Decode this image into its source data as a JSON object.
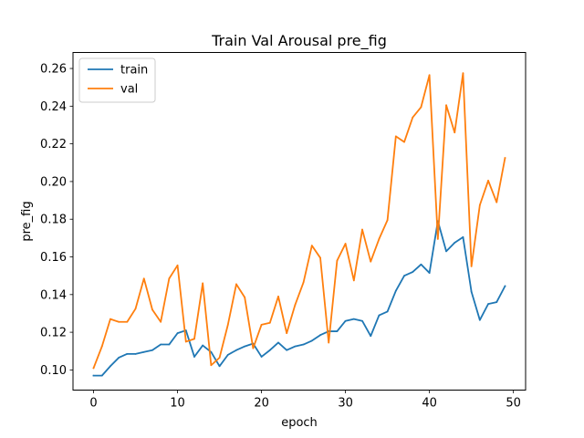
{
  "chart_data": {
    "type": "line",
    "title": "Train Val Arousal pre_fig",
    "xlabel": "epoch",
    "ylabel": "pre_fig",
    "xlim": [
      -2.45,
      51.45
    ],
    "ylim": [
      0.0893,
      0.2685
    ],
    "xticks": [
      0,
      10,
      20,
      30,
      40,
      50
    ],
    "yticks": [
      0.1,
      0.12,
      0.14,
      0.16,
      0.18,
      0.2,
      0.22,
      0.24,
      0.26
    ],
    "grid": false,
    "legend_position": "top-left",
    "x": [
      0,
      1,
      2,
      3,
      4,
      5,
      6,
      7,
      8,
      9,
      10,
      11,
      12,
      13,
      14,
      15,
      16,
      17,
      18,
      19,
      20,
      21,
      22,
      23,
      24,
      25,
      26,
      27,
      28,
      29,
      30,
      31,
      32,
      33,
      34,
      35,
      36,
      37,
      38,
      39,
      40,
      41,
      42,
      43,
      44,
      45,
      46,
      47,
      48,
      49
    ],
    "series": [
      {
        "name": "train",
        "color": "#1f77b4",
        "values": [
          0.097,
          0.097,
          0.102,
          0.1065,
          0.1085,
          0.1085,
          0.1095,
          0.1105,
          0.1135,
          0.1135,
          0.1195,
          0.121,
          0.107,
          0.113,
          0.1095,
          0.102,
          0.108,
          0.1105,
          0.1125,
          0.114,
          0.107,
          0.1105,
          0.1145,
          0.1105,
          0.1125,
          0.1135,
          0.1155,
          0.1185,
          0.1205,
          0.1205,
          0.126,
          0.127,
          0.126,
          0.118,
          0.129,
          0.131,
          0.142,
          0.15,
          0.152,
          0.156,
          0.1515,
          0.179,
          0.163,
          0.1675,
          0.1705,
          0.1415,
          0.1265,
          0.135,
          0.136,
          0.1445
        ]
      },
      {
        "name": "val",
        "color": "#ff7f0e",
        "values": [
          0.101,
          0.1125,
          0.127,
          0.1255,
          0.1255,
          0.1325,
          0.1485,
          0.132,
          0.1255,
          0.1485,
          0.1555,
          0.115,
          0.1165,
          0.146,
          0.1025,
          0.1065,
          0.124,
          0.1455,
          0.1385,
          0.1115,
          0.124,
          0.125,
          0.139,
          0.1195,
          0.1345,
          0.1465,
          0.166,
          0.1595,
          0.1145,
          0.158,
          0.167,
          0.1475,
          0.1745,
          0.1575,
          0.1695,
          0.1795,
          0.224,
          0.221,
          0.234,
          0.2395,
          0.2565,
          0.1695,
          0.2405,
          0.226,
          0.2575,
          0.155,
          0.1875,
          0.2005,
          0.189,
          0.2125
        ]
      }
    ]
  }
}
